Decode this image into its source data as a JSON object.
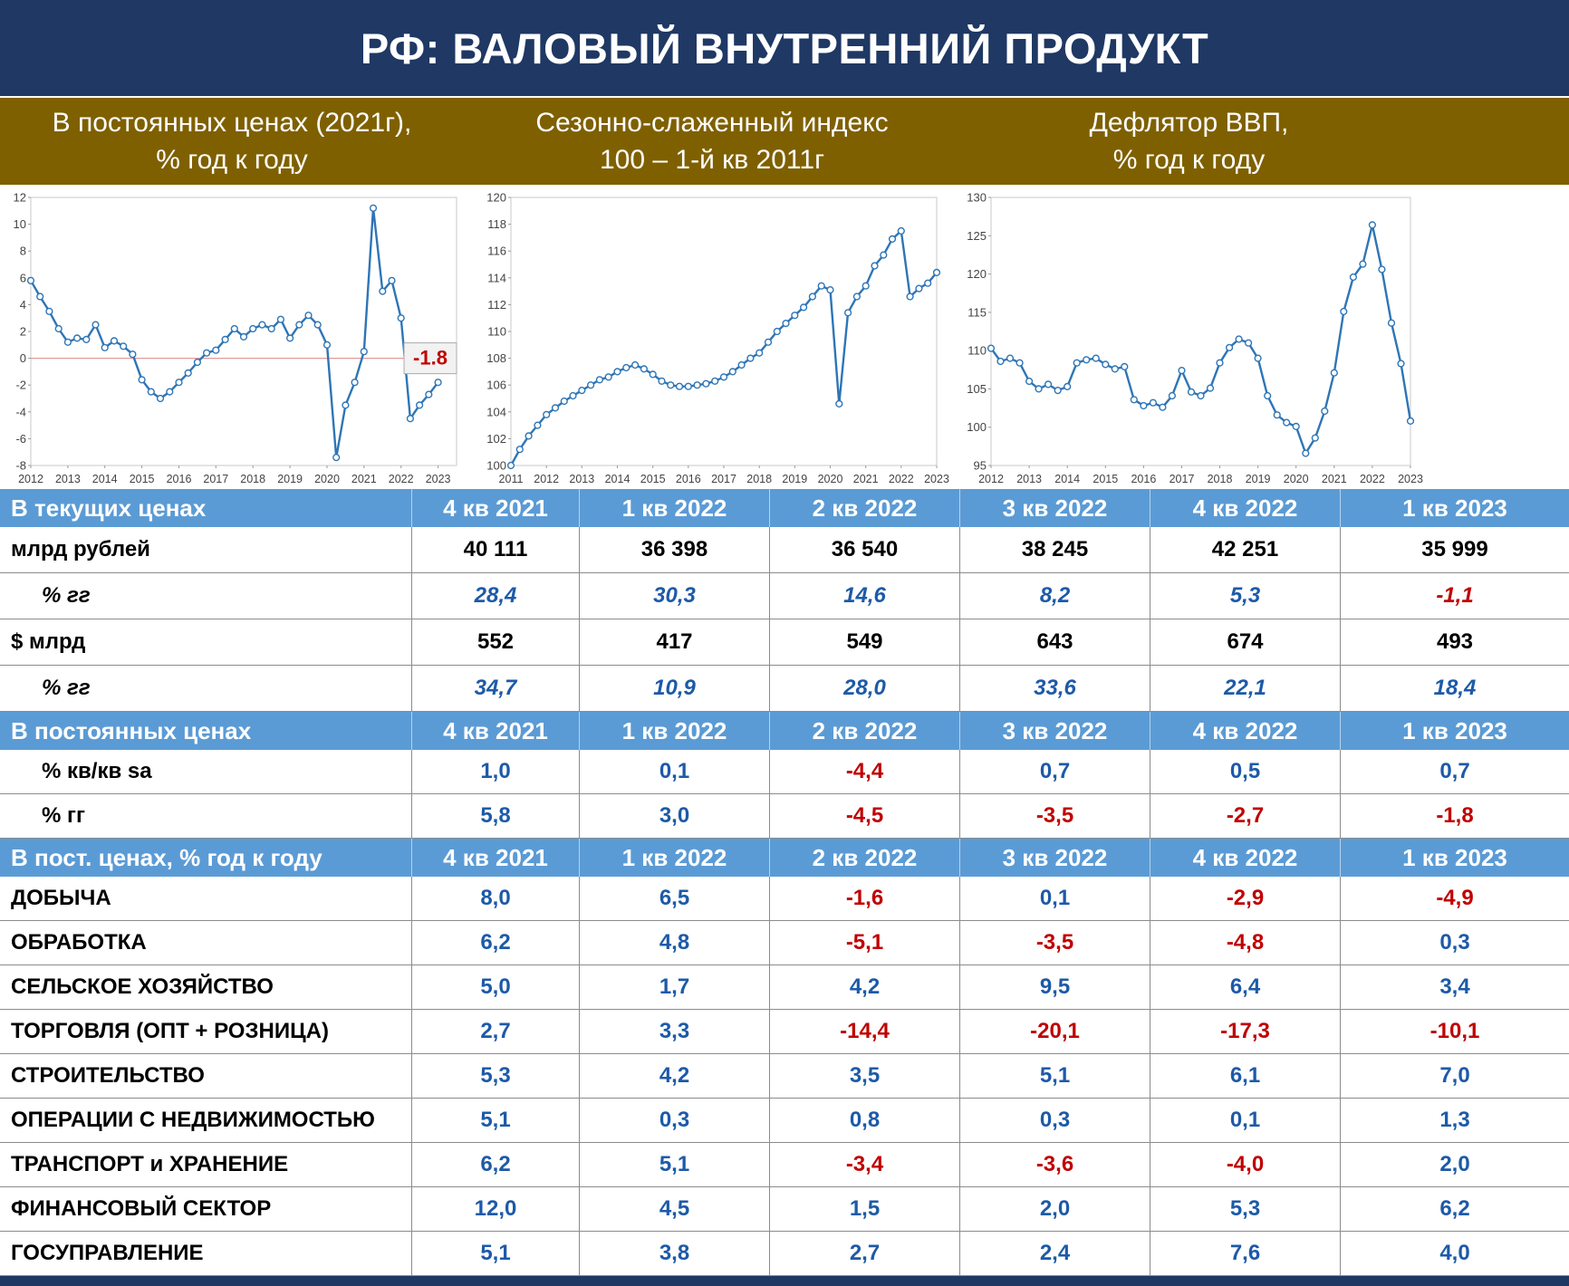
{
  "title": "РФ: ВАЛОВЫЙ ВНУТРЕННИЙ ПРОДУКТ",
  "colors": {
    "navy": "#1f3864",
    "olive": "#7f6000",
    "header_blue": "#5b9bd5",
    "positive": "#1d5aa8",
    "negative": "#c00000",
    "chart_line": "#2e75b6",
    "zero_line": "#e59999"
  },
  "chart_data": [
    {
      "type": "line",
      "title": "В постоянных ценах (2021г), % год к году",
      "header_lines": [
        "В постоянных ценах (2021г),",
        "% год к году"
      ],
      "x_years": [
        "2012",
        "2013",
        "2014",
        "2015",
        "2016",
        "2017",
        "2018",
        "2019",
        "2020",
        "2021",
        "2022",
        "2023"
      ],
      "x_frequency": "quarterly",
      "ylim": [
        -8,
        12
      ],
      "ytick": 2,
      "x_extend": 2,
      "zero_line": true,
      "annotation": {
        "text": "-1.8"
      },
      "values": [
        5.8,
        4.6,
        3.5,
        2.2,
        1.2,
        1.5,
        1.4,
        2.5,
        0.8,
        1.3,
        0.9,
        0.3,
        -1.6,
        -2.5,
        -3.0,
        -2.5,
        -1.8,
        -1.1,
        -0.3,
        0.4,
        0.6,
        1.4,
        2.2,
        1.6,
        2.2,
        2.5,
        2.2,
        2.9,
        1.5,
        2.5,
        3.2,
        2.5,
        1.0,
        -7.4,
        -3.5,
        -1.8,
        0.5,
        11.2,
        5.0,
        5.8,
        3.0,
        -4.5,
        -3.5,
        -2.7,
        -1.8
      ]
    },
    {
      "type": "line",
      "title": "Сезонно-слаженный индекс 100 – 1-й кв 2011г",
      "header_lines": [
        "Сезонно-слаженный индекс",
        "100 – 1-й кв 2011г"
      ],
      "x_years": [
        "2011",
        "2012",
        "2013",
        "2014",
        "2015",
        "2016",
        "2017",
        "2018",
        "2019",
        "2020",
        "2021",
        "2022",
        "2023"
      ],
      "x_frequency": "quarterly",
      "ylim": [
        100,
        120
      ],
      "ytick": 2,
      "x_extend": 0,
      "zero_line": false,
      "values": [
        100.0,
        101.2,
        102.2,
        103.0,
        103.8,
        104.3,
        104.8,
        105.2,
        105.6,
        106.0,
        106.4,
        106.6,
        107.0,
        107.3,
        107.5,
        107.2,
        106.8,
        106.3,
        106.0,
        105.9,
        105.9,
        106.0,
        106.1,
        106.3,
        106.6,
        107.0,
        107.5,
        108.0,
        108.4,
        109.2,
        110.0,
        110.6,
        111.2,
        111.8,
        112.6,
        113.4,
        113.1,
        104.6,
        111.4,
        112.6,
        113.4,
        114.9,
        115.7,
        116.9,
        117.5,
        112.6,
        113.2,
        113.6,
        114.4
      ]
    },
    {
      "type": "line",
      "title": "Дефлятор ВВП, % год к году",
      "header_lines": [
        "Дефлятор ВВП,",
        "% год к году"
      ],
      "x_years": [
        "2012",
        "2013",
        "2014",
        "2015",
        "2016",
        "2017",
        "2018",
        "2019",
        "2020",
        "2021",
        "2022",
        "2023"
      ],
      "x_frequency": "quarterly",
      "ylim": [
        95,
        130
      ],
      "ytick": 5,
      "x_extend": 0,
      "zero_line": false,
      "values": [
        110.3,
        108.6,
        109.0,
        108.4,
        106.0,
        105.0,
        105.6,
        104.8,
        105.3,
        108.4,
        108.8,
        109.0,
        108.2,
        107.6,
        107.9,
        103.6,
        102.8,
        103.2,
        102.6,
        104.1,
        107.4,
        104.6,
        104.1,
        105.1,
        108.4,
        110.4,
        111.5,
        111.0,
        109.0,
        104.1,
        101.6,
        100.6,
        100.1,
        96.6,
        98.6,
        102.1,
        107.1,
        115.1,
        119.6,
        121.3,
        126.4,
        120.6,
        113.6,
        108.3,
        100.8
      ]
    }
  ],
  "table": {
    "quarters": [
      "4 кв 2021",
      "1 кв 2022",
      "2 кв 2022",
      "3 кв 2022",
      "4 кв 2022",
      "1 кв 2023"
    ],
    "sections": [
      {
        "header": "В текущих ценах",
        "row_class": "r-big",
        "rows": [
          {
            "label": "млрд рублей",
            "color": "black",
            "indent": false,
            "italic": false,
            "values": [
              "40 111",
              "36 398",
              "36 540",
              "38 245",
              "42 251",
              "35 999"
            ]
          },
          {
            "label": "% гг",
            "color": "auto",
            "indent": true,
            "italic": true,
            "values": [
              "28,4",
              "30,3",
              "14,6",
              "8,2",
              "5,3",
              "-1,1"
            ]
          },
          {
            "label": "$ млрд",
            "color": "black",
            "indent": false,
            "italic": false,
            "values": [
              "552",
              "417",
              "549",
              "643",
              "674",
              "493"
            ]
          },
          {
            "label": "% гг",
            "color": "auto",
            "indent": true,
            "italic": true,
            "values": [
              "34,7",
              "10,9",
              "28,0",
              "33,6",
              "22,1",
              "18,4"
            ]
          }
        ]
      },
      {
        "header": "В постоянных ценах",
        "row_class": "r-mid",
        "rows": [
          {
            "label": "% кв/кв sa",
            "color": "auto",
            "indent": true,
            "italic": false,
            "values": [
              "1,0",
              "0,1",
              "-4,4",
              "0,7",
              "0,5",
              "0,7"
            ]
          },
          {
            "label": "% гг",
            "color": "auto",
            "indent": true,
            "italic": false,
            "values": [
              "5,8",
              "3,0",
              "-4,5",
              "-3,5",
              "-2,7",
              "-1,8"
            ]
          }
        ]
      },
      {
        "header": "В пост. ценах, % год к году",
        "row_class": "r-sec",
        "rows": [
          {
            "label": "ДОБЫЧА",
            "color": "auto",
            "indent": false,
            "italic": false,
            "values": [
              "8,0",
              "6,5",
              "-1,6",
              "0,1",
              "-2,9",
              "-4,9"
            ]
          },
          {
            "label": "ОБРАБОТКА",
            "color": "auto",
            "indent": false,
            "italic": false,
            "values": [
              "6,2",
              "4,8",
              "-5,1",
              "-3,5",
              "-4,8",
              "0,3"
            ]
          },
          {
            "label": "СЕЛЬСКОЕ ХОЗЯЙСТВО",
            "color": "auto",
            "indent": false,
            "italic": false,
            "values": [
              "5,0",
              "1,7",
              "4,2",
              "9,5",
              "6,4",
              "3,4"
            ]
          },
          {
            "label": "ТОРГОВЛЯ (ОПТ + РОЗНИЦА)",
            "color": "auto",
            "indent": false,
            "italic": false,
            "values": [
              "2,7",
              "3,3",
              "-14,4",
              "-20,1",
              "-17,3",
              "-10,1"
            ]
          },
          {
            "label": "СТРОИТЕЛЬСТВО",
            "color": "auto",
            "indent": false,
            "italic": false,
            "values": [
              "5,3",
              "4,2",
              "3,5",
              "5,1",
              "6,1",
              "7,0"
            ]
          },
          {
            "label": "ОПЕРАЦИИ С НЕДВИЖИМОСТЬЮ",
            "color": "auto",
            "indent": false,
            "italic": false,
            "values": [
              "5,1",
              "0,3",
              "0,8",
              "0,3",
              "0,1",
              "1,3"
            ]
          },
          {
            "label": "ТРАНСПОРТ и ХРАНЕНИЕ",
            "color": "auto",
            "indent": false,
            "italic": false,
            "values": [
              "6,2",
              "5,1",
              "-3,4",
              "-3,6",
              "-4,0",
              "2,0"
            ]
          },
          {
            "label": "ФИНАНСОВЫЙ СЕКТОР",
            "color": "auto",
            "indent": false,
            "italic": false,
            "values": [
              "12,0",
              "4,5",
              "1,5",
              "2,0",
              "5,3",
              "6,2"
            ]
          },
          {
            "label": "ГОСУПРАВЛЕНИЕ",
            "color": "auto",
            "indent": false,
            "italic": false,
            "values": [
              "5,1",
              "3,8",
              "2,7",
              "2,4",
              "7,6",
              "4,0"
            ]
          }
        ]
      }
    ]
  }
}
